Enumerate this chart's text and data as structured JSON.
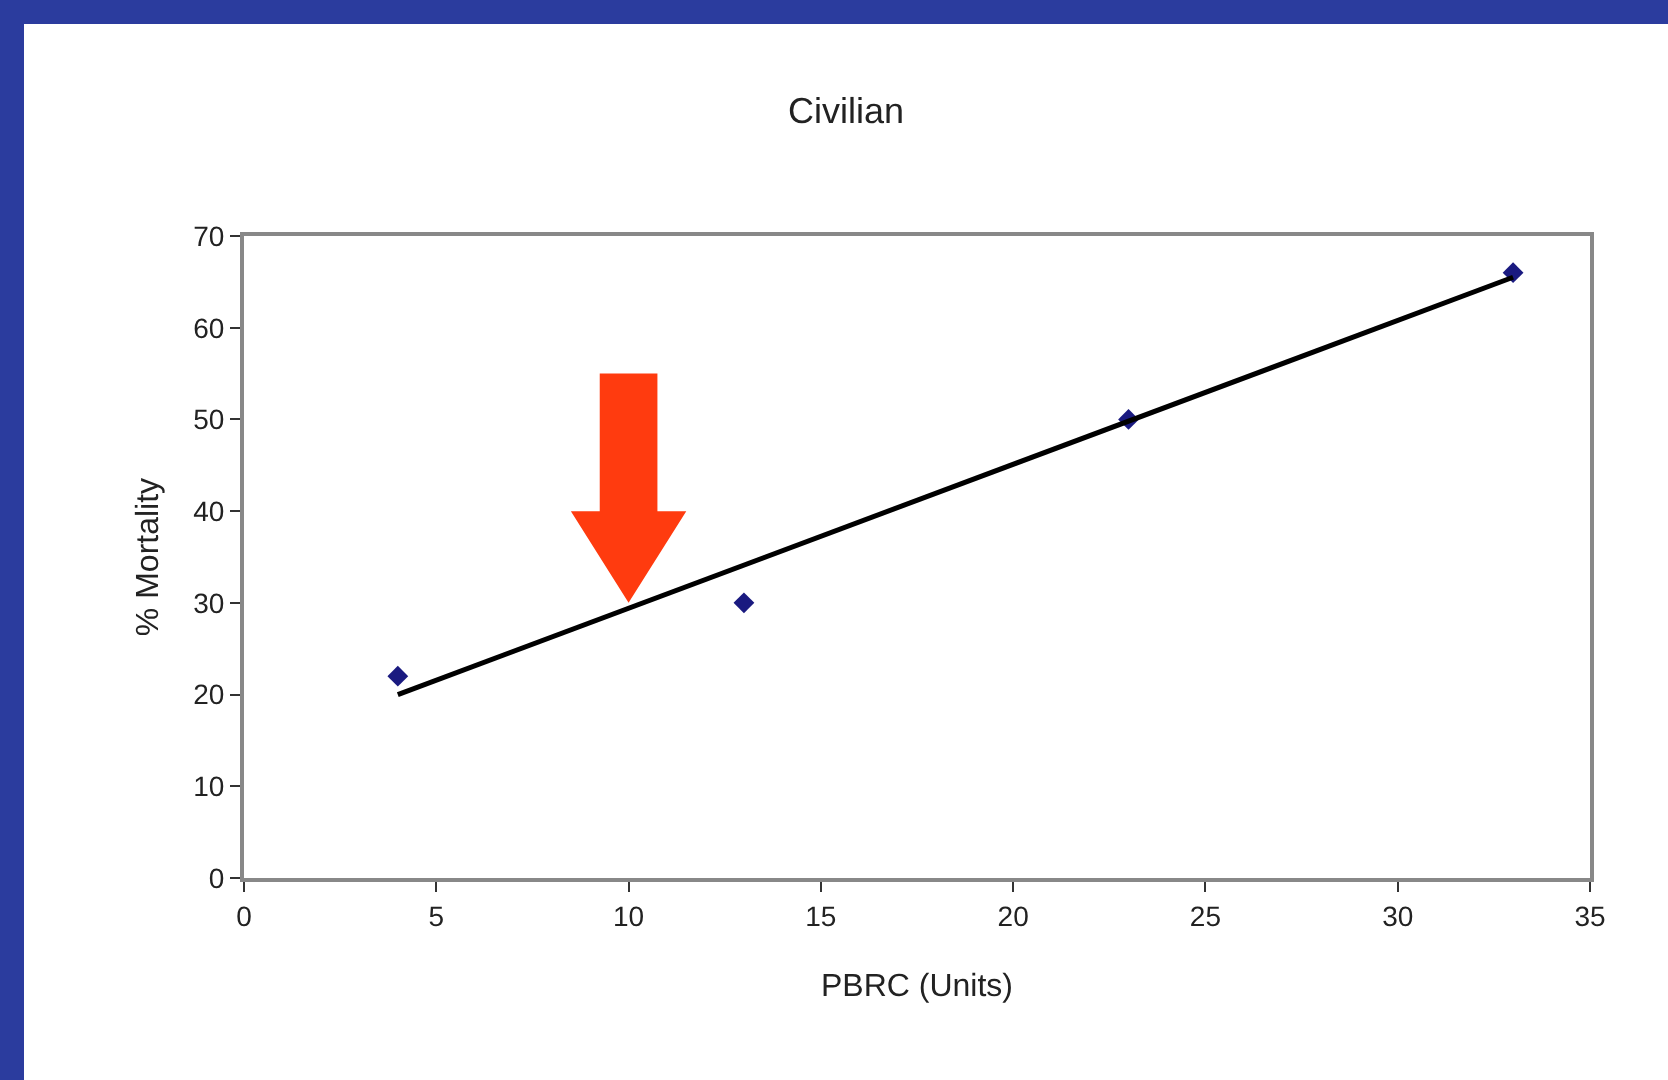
{
  "chart_data": {
    "type": "scatter",
    "title": "Civilian",
    "xlabel": "PBRC (Units)",
    "ylabel": "% Mortality",
    "x": [
      4,
      13,
      23,
      33
    ],
    "series": [
      {
        "color": "#1a1a80",
        "values": [
          22,
          30,
          50,
          66
        ],
        "marker": "diamond"
      },
      {
        "type": "line",
        "color": "#000000",
        "x": [
          4,
          33
        ],
        "values": [
          20,
          65.5
        ],
        "marker": "none"
      }
    ],
    "xlim": [
      0,
      35
    ],
    "xticks": [
      0,
      5,
      10,
      15,
      20,
      25,
      30,
      35
    ],
    "ylim": [
      0,
      70
    ],
    "yticks": [
      0,
      10,
      20,
      30,
      40,
      50,
      60,
      70
    ],
    "grid": false
  }
}
